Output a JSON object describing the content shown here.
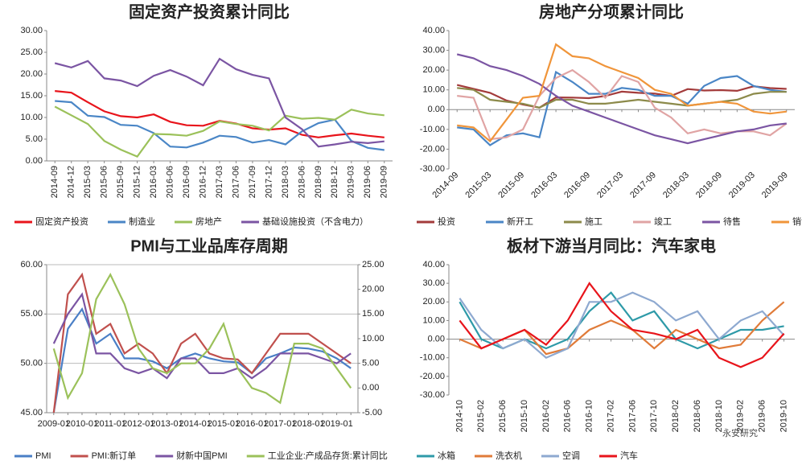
{
  "chart_data": [
    {
      "type": "line",
      "title": "固定资产投资累计同比",
      "categories": [
        "2014-09",
        "2014-12",
        "2015-03",
        "2015-06",
        "2015-09",
        "2015-12",
        "2016-03",
        "2016-06",
        "2016-09",
        "2016-12",
        "2017-03",
        "2017-06",
        "2017-09",
        "2017-12",
        "2018-03",
        "2018-06",
        "2018-09",
        "2018-12",
        "2019-03",
        "2019-06",
        "2019-09"
      ],
      "series": [
        {
          "name": "固定资产投资",
          "color": "#e8141b",
          "values": [
            16.1,
            15.7,
            13.5,
            11.4,
            10.3,
            10.0,
            10.7,
            9.0,
            8.2,
            8.1,
            9.2,
            8.6,
            7.5,
            7.2,
            7.5,
            6.0,
            5.4,
            5.9,
            6.3,
            5.8,
            5.4
          ]
        },
        {
          "name": "制造业",
          "color": "#4a86c6",
          "values": [
            13.8,
            13.5,
            10.4,
            10.1,
            8.3,
            8.1,
            6.4,
            3.3,
            3.1,
            4.2,
            5.8,
            5.5,
            4.2,
            4.8,
            3.8,
            6.8,
            8.7,
            9.5,
            4.6,
            3.0,
            2.5
          ]
        },
        {
          "name": "房地产",
          "color": "#9bc15a",
          "values": [
            12.5,
            10.5,
            8.5,
            4.6,
            2.6,
            1.0,
            6.2,
            6.1,
            5.8,
            6.9,
            9.1,
            8.5,
            8.1,
            7.0,
            10.4,
            9.7,
            9.9,
            9.5,
            11.8,
            10.9,
            10.5
          ]
        },
        {
          "name": "基础设施投资（不含电力）",
          "color": "#7b55a3",
          "values": [
            22.5,
            21.5,
            23.0,
            19.0,
            18.5,
            17.2,
            19.6,
            20.9,
            19.4,
            17.4,
            23.5,
            21.1,
            19.8,
            19.0,
            10.0,
            7.3,
            3.3,
            3.8,
            4.4,
            4.1,
            4.5
          ]
        }
      ],
      "ylim": [
        0,
        30
      ],
      "yticks": [
        {
          "value": 0,
          "label": "0.00"
        },
        {
          "value": 5,
          "label": "5.00"
        },
        {
          "value": 10,
          "label": "10.00"
        },
        {
          "value": 15,
          "label": "15.00"
        },
        {
          "value": 20,
          "label": "20.00"
        },
        {
          "value": 25,
          "label": "25.00"
        },
        {
          "value": 30,
          "label": "30.00"
        }
      ],
      "grid": false
    },
    {
      "type": "line",
      "title": "房地产分项累计同比",
      "categories": [
        "2014-09",
        null,
        "2015-03",
        null,
        "2015-09",
        null,
        "2016-03",
        null,
        "2016-09",
        null,
        "2017-03",
        null,
        "2017-09",
        null,
        "2018-03",
        null,
        "2018-09",
        null,
        "2019-03",
        null,
        "2019-09"
      ],
      "series": [
        {
          "name": "投资",
          "color": "#a33b3b",
          "values": [
            12.5,
            10.5,
            8.5,
            4.6,
            2.6,
            1.0,
            6.2,
            6.1,
            5.8,
            6.9,
            9.1,
            8.5,
            8.1,
            7.0,
            10.4,
            9.7,
            9.9,
            9.5,
            11.8,
            10.9,
            10.5
          ]
        },
        {
          "name": "新开工",
          "color": "#4a86c6",
          "values": [
            -9,
            -10,
            -18,
            -13,
            -12,
            -14,
            19,
            14,
            8,
            8,
            11,
            10,
            7,
            7,
            3,
            12,
            16,
            17,
            12,
            10,
            9
          ]
        },
        {
          "name": "施工",
          "color": "#8c8a4a",
          "values": [
            11,
            10,
            5,
            4,
            3,
            1,
            5,
            5,
            3,
            3,
            4,
            5,
            4,
            3,
            2,
            3,
            4,
            5,
            8,
            9,
            9
          ]
        },
        {
          "name": "竣工",
          "color": "#e0a4a4",
          "values": [
            7,
            6,
            -15,
            -14,
            -10,
            7,
            16,
            20,
            14,
            6,
            17,
            14,
            1,
            -4,
            -12,
            -10,
            -12,
            -11,
            -11,
            -13,
            -7
          ]
        },
        {
          "name": "待售",
          "color": "#7b55a3",
          "values": [
            28,
            26,
            22,
            20,
            17,
            13,
            7,
            2,
            -1,
            -4,
            -7,
            -10,
            -13,
            -15,
            -17,
            -15,
            -13,
            -11,
            -10,
            -8,
            -7
          ]
        },
        {
          "name": "销售",
          "color": "#f0953a",
          "values": [
            -8,
            -9,
            -16,
            -5,
            6,
            7,
            33,
            27,
            26,
            22,
            19,
            16,
            10,
            8,
            2,
            3,
            4,
            3,
            -1,
            -2,
            -1
          ]
        }
      ],
      "ylim": [
        -30,
        40
      ],
      "yticks": [
        {
          "value": -30,
          "label": "-30.00"
        },
        {
          "value": -20,
          "label": "-20.00"
        },
        {
          "value": -10,
          "label": "-10.00"
        },
        {
          "value": 0,
          "label": "0.00"
        },
        {
          "value": 10,
          "label": "10.00"
        },
        {
          "value": 20,
          "label": "20.00"
        },
        {
          "value": 30,
          "label": "30.00"
        },
        {
          "value": 40,
          "label": "40.00"
        }
      ],
      "grid": false
    },
    {
      "type": "line",
      "title": "PMI与工业品库存周期",
      "categories": [
        "2009-01",
        null,
        "2010-01",
        null,
        "2011-01",
        null,
        "2012-01",
        null,
        "2013-01",
        null,
        "2014-01",
        null,
        "2015-01",
        null,
        "2016-01",
        null,
        "2017-01",
        null,
        "2018-01",
        null,
        "2019-01",
        null
      ],
      "series": [
        {
          "name": "PMI",
          "color": "#4a7fc6",
          "values": [
            45,
            53.5,
            55.5,
            52,
            53,
            50.5,
            50.5,
            50.2,
            49.5,
            50.5,
            51,
            50.5,
            50.2,
            50.1,
            49,
            50.5,
            51,
            51.6,
            51.5,
            51.2,
            50.5,
            49.5
          ]
        },
        {
          "name": "PMI:新订单",
          "color": "#c0504d",
          "values": [
            45,
            57,
            59,
            53,
            54,
            51,
            52,
            51,
            49,
            52,
            53,
            51,
            50.5,
            50.4,
            49,
            51,
            53,
            53,
            53,
            52,
            51,
            50
          ]
        },
        {
          "name": "财新中国PMI",
          "color": "#7b55a3",
          "values": [
            52,
            55,
            57,
            51,
            51,
            49.5,
            49,
            49.5,
            48.5,
            50.5,
            50.5,
            49,
            49,
            49.5,
            48.5,
            49.5,
            51,
            51,
            51,
            50.5,
            50,
            51
          ]
        },
        {
          "name": "工业企业:产成品存货:累计同比",
          "color": "#9bc15a",
          "axis": "y2",
          "values": [
            8,
            -2,
            3,
            18,
            23,
            17,
            8,
            4,
            3,
            5,
            5,
            8,
            13,
            4,
            0,
            -1,
            -3,
            9,
            9,
            8,
            4,
            0
          ]
        }
      ],
      "ylim": [
        45,
        60
      ],
      "yticks": [
        {
          "value": 45,
          "label": "45.00"
        },
        {
          "value": 50,
          "label": "50.00"
        },
        {
          "value": 55,
          "label": "55.00"
        },
        {
          "value": 60,
          "label": "60.00"
        }
      ],
      "y2lim": [
        -5,
        25
      ],
      "y2ticks": [
        {
          "value": -5,
          "label": "-5.00"
        },
        {
          "value": 0,
          "label": "0.00"
        },
        {
          "value": 5,
          "label": "5.00"
        },
        {
          "value": 10,
          "label": "10.00"
        },
        {
          "value": 15,
          "label": "15.00"
        },
        {
          "value": 20,
          "label": "20.00"
        },
        {
          "value": 25,
          "label": "25.00"
        }
      ],
      "grid": true
    },
    {
      "type": "line",
      "title": "板材下游当月同比：汽车家电",
      "annotation": "永安研究",
      "categories": [
        "2014-10",
        "2015-02",
        "2015-06",
        "2015-10",
        "2016-02",
        "2016-06",
        "2016-10",
        "2017-02",
        "2017-06",
        "2017-10",
        "2018-02",
        "2018-06",
        "2018-10",
        "2019-02",
        "2019-06",
        "2019-10"
      ],
      "series": [
        {
          "name": "冰箱",
          "color": "#2e9aa8",
          "values": [
            20,
            0,
            -5,
            0,
            -5,
            0,
            15,
            25,
            10,
            15,
            0,
            -5,
            0,
            5,
            5,
            7
          ]
        },
        {
          "name": "洗衣机",
          "color": "#e07b39",
          "values": [
            0,
            -5,
            0,
            5,
            -8,
            -5,
            5,
            10,
            5,
            -5,
            5,
            0,
            -5,
            -3,
            10,
            20
          ]
        },
        {
          "name": "空调",
          "color": "#8ea9d0",
          "values": [
            22,
            5,
            -5,
            0,
            -10,
            -5,
            20,
            20,
            25,
            20,
            10,
            15,
            0,
            10,
            15,
            2
          ]
        },
        {
          "name": "汽车",
          "color": "#e8141b",
          "values": [
            10,
            -5,
            0,
            5,
            -3,
            10,
            30,
            15,
            5,
            3,
            0,
            5,
            -10,
            -15,
            -10,
            3
          ]
        }
      ],
      "ylim": [
        -30,
        40
      ],
      "yticks": [
        {
          "value": -30,
          "label": "-30.00"
        },
        {
          "value": -20,
          "label": "-20.00"
        },
        {
          "value": -10,
          "label": "-10.00"
        },
        {
          "value": 0,
          "label": "0.00"
        },
        {
          "value": 10,
          "label": "10.00"
        },
        {
          "value": 20,
          "label": "20.00"
        },
        {
          "value": 30,
          "label": "30.00"
        },
        {
          "value": 40,
          "label": "40.00"
        }
      ],
      "grid": false
    }
  ]
}
